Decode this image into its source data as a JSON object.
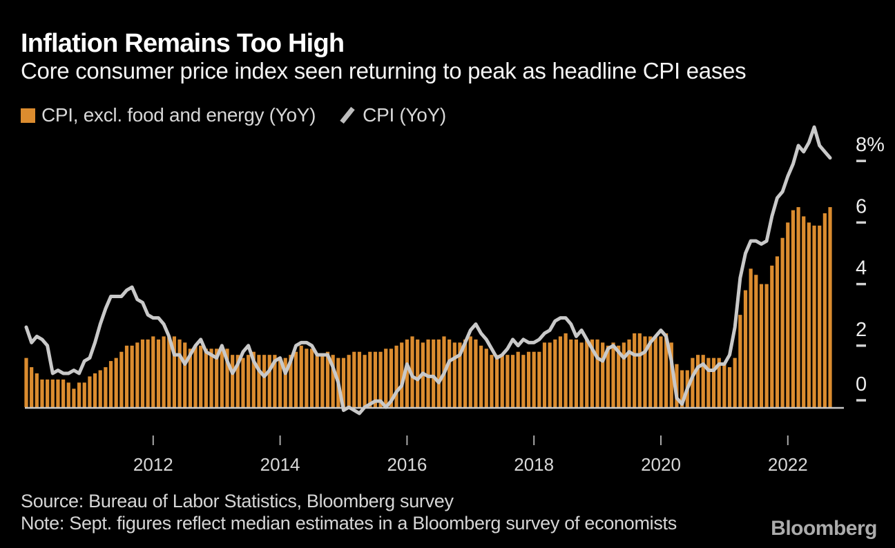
{
  "header": {
    "title": "Inflation Remains Too High",
    "subtitle": "Core consumer price index seen returning to peak as headline CPI eases"
  },
  "legend": {
    "items": [
      {
        "label": "CPI, excl. food and energy (YoY)",
        "marker": "square",
        "color": "#DB8C2F"
      },
      {
        "label": "CPI (YoY)",
        "marker": "slash",
        "color": "#BEBEBE"
      }
    ]
  },
  "footer": {
    "source": "Source: Bureau of Labor Statistics, Bloomberg survey",
    "note": "Note: Sept. figures reflect median estimates in a Bloomberg survey of economists",
    "logo": "Bloomberg"
  },
  "chart_data": {
    "type": "bar",
    "subtype": "monthly bars with overlaid line",
    "x_start": "2010-01",
    "x_end": "2022-09",
    "x_tick_labels": [
      "2012",
      "2014",
      "2016",
      "2018",
      "2020",
      "2022"
    ],
    "x_tick_month_index": [
      24,
      48,
      72,
      96,
      120,
      144
    ],
    "y_axis_side": "right",
    "y_ticks": [
      {
        "label": "8%",
        "value": 8
      },
      {
        "label": "6",
        "value": 6
      },
      {
        "label": "4",
        "value": 4
      },
      {
        "label": "2",
        "value": 2
      },
      {
        "label": "0",
        "value": 0
      }
    ],
    "ylim": [
      -0.5,
      9.4
    ],
    "grid": false,
    "series": [
      {
        "name": "CPI, excl. food and energy (YoY)",
        "type": "bar",
        "color": "#DB8C2F",
        "values": [
          1.6,
          1.3,
          1.1,
          0.9,
          0.9,
          0.9,
          0.9,
          0.9,
          0.8,
          0.6,
          0.8,
          0.8,
          1.0,
          1.1,
          1.2,
          1.3,
          1.5,
          1.6,
          1.8,
          2.0,
          2.0,
          2.1,
          2.2,
          2.2,
          2.3,
          2.2,
          2.3,
          2.3,
          2.3,
          2.2,
          2.1,
          1.9,
          2.0,
          2.0,
          1.9,
          1.9,
          1.9,
          2.0,
          1.9,
          1.7,
          1.7,
          1.6,
          1.7,
          1.8,
          1.7,
          1.7,
          1.7,
          1.7,
          1.6,
          1.6,
          1.7,
          1.8,
          2.0,
          1.9,
          1.9,
          1.7,
          1.7,
          1.8,
          1.7,
          1.6,
          1.6,
          1.7,
          1.8,
          1.8,
          1.7,
          1.8,
          1.8,
          1.8,
          1.9,
          1.9,
          2.0,
          2.1,
          2.2,
          2.3,
          2.2,
          2.1,
          2.2,
          2.2,
          2.2,
          2.3,
          2.2,
          2.1,
          2.1,
          2.2,
          2.3,
          2.2,
          2.0,
          1.9,
          1.7,
          1.7,
          1.7,
          1.7,
          1.7,
          1.8,
          1.7,
          1.8,
          1.8,
          1.8,
          2.1,
          2.1,
          2.2,
          2.3,
          2.4,
          2.2,
          2.2,
          2.1,
          2.2,
          2.2,
          2.2,
          2.1,
          2.0,
          2.1,
          2.0,
          2.1,
          2.2,
          2.4,
          2.4,
          2.3,
          2.3,
          2.3,
          2.3,
          2.4,
          2.1,
          1.4,
          1.2,
          1.2,
          1.6,
          1.7,
          1.7,
          1.6,
          1.6,
          1.6,
          1.4,
          1.3,
          1.6,
          3.0,
          3.8,
          4.5,
          4.3,
          4.0,
          4.0,
          4.6,
          4.9,
          5.5,
          6.0,
          6.4,
          6.5,
          6.2,
          6.0,
          5.9,
          5.9,
          6.3,
          6.5
        ]
      },
      {
        "name": "CPI (YoY)",
        "type": "line",
        "color": "#C9C9C9",
        "values": [
          2.6,
          2.1,
          2.3,
          2.2,
          2.0,
          1.1,
          1.2,
          1.1,
          1.1,
          1.2,
          1.1,
          1.5,
          1.6,
          2.1,
          2.7,
          3.2,
          3.6,
          3.6,
          3.6,
          3.8,
          3.9,
          3.5,
          3.4,
          3.0,
          2.9,
          2.9,
          2.7,
          2.3,
          1.7,
          1.7,
          1.4,
          1.7,
          2.0,
          2.2,
          1.8,
          1.7,
          1.6,
          2.0,
          1.5,
          1.1,
          1.4,
          1.8,
          2.0,
          1.5,
          1.2,
          1.0,
          1.2,
          1.5,
          1.6,
          1.1,
          1.5,
          2.0,
          2.1,
          2.1,
          2.0,
          1.7,
          1.7,
          1.7,
          1.3,
          0.8,
          -0.1,
          0.0,
          -0.1,
          -0.2,
          0.0,
          0.1,
          0.2,
          0.2,
          0.0,
          0.2,
          0.5,
          0.7,
          1.4,
          1.0,
          0.9,
          1.1,
          1.0,
          1.0,
          0.8,
          1.1,
          1.5,
          1.6,
          1.7,
          2.1,
          2.5,
          2.7,
          2.4,
          2.2,
          1.9,
          1.6,
          1.7,
          1.9,
          2.2,
          2.0,
          2.2,
          2.1,
          2.1,
          2.2,
          2.4,
          2.5,
          2.8,
          2.9,
          2.9,
          2.7,
          2.3,
          2.5,
          2.2,
          1.9,
          1.6,
          1.5,
          1.9,
          2.0,
          1.8,
          1.6,
          1.8,
          1.7,
          1.7,
          1.8,
          2.1,
          2.3,
          2.5,
          2.3,
          1.5,
          0.3,
          0.1,
          0.6,
          1.0,
          1.3,
          1.4,
          1.2,
          1.2,
          1.4,
          1.4,
          1.7,
          2.6,
          4.2,
          5.0,
          5.4,
          5.4,
          5.3,
          5.4,
          6.2,
          6.8,
          7.0,
          7.5,
          7.9,
          8.5,
          8.3,
          8.6,
          9.1,
          8.5,
          8.3,
          8.1
        ]
      }
    ],
    "styles": {
      "axis_line_color": "#C9C9C9",
      "x_tick_color": "#A9A9A9",
      "x_label_color": "#D8D8D8",
      "y_dash_color": "#D2D2D2",
      "y_label_color": "#ECECEC",
      "background": "#000000"
    }
  }
}
